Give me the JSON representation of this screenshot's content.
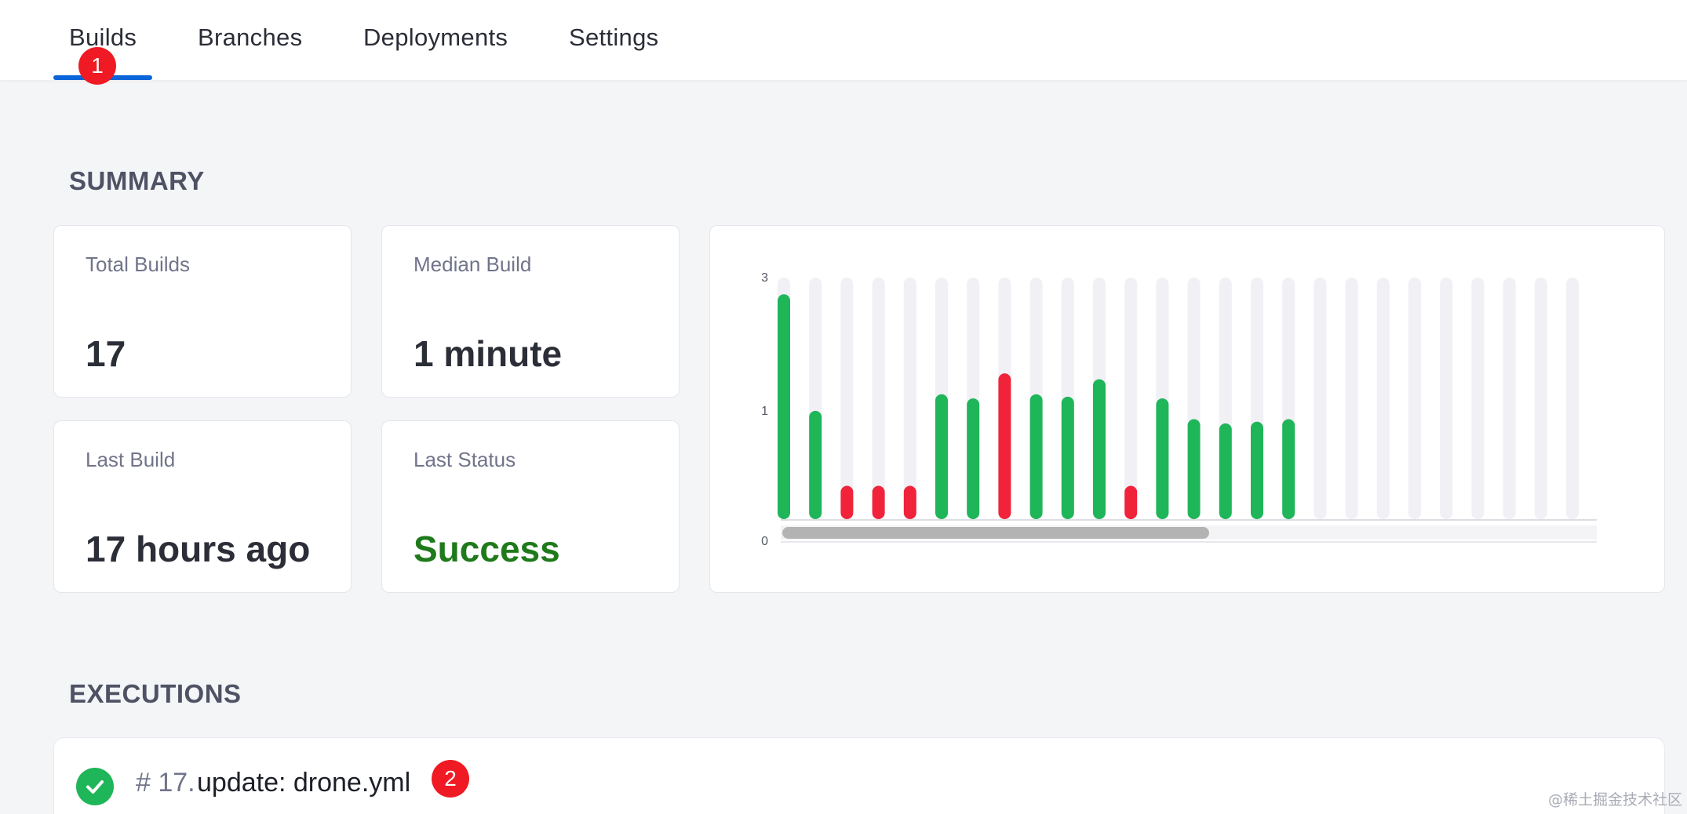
{
  "tabs": [
    {
      "label": "Builds",
      "active": true
    },
    {
      "label": "Branches",
      "active": false
    },
    {
      "label": "Deployments",
      "active": false
    },
    {
      "label": "Settings",
      "active": false
    }
  ],
  "markers": {
    "first": "1",
    "second": "2"
  },
  "summary": {
    "title": "SUMMARY",
    "total_builds_label": "Total Builds",
    "total_builds_value": "17",
    "median_build_label": "Median Build",
    "median_build_value": "1 minute",
    "last_build_label": "Last Build",
    "last_build_value": "17 hours ago",
    "last_status_label": "Last Status",
    "last_status_value": "Success"
  },
  "chart_data": {
    "type": "bar",
    "y_ticks": [
      "3",
      "1",
      "0"
    ],
    "slots": 27,
    "bars": [
      {
        "value": 2.7,
        "status": "success"
      },
      {
        "value": 1.3,
        "status": "success"
      },
      {
        "value": 0.4,
        "status": "failure"
      },
      {
        "value": 0.4,
        "status": "failure"
      },
      {
        "value": 0.4,
        "status": "failure"
      },
      {
        "value": 1.5,
        "status": "success"
      },
      {
        "value": 1.45,
        "status": "success"
      },
      {
        "value": 1.75,
        "status": "failure"
      },
      {
        "value": 1.5,
        "status": "success"
      },
      {
        "value": 1.47,
        "status": "success"
      },
      {
        "value": 1.68,
        "status": "success"
      },
      {
        "value": 0.4,
        "status": "failure"
      },
      {
        "value": 1.45,
        "status": "success"
      },
      {
        "value": 1.2,
        "status": "success"
      },
      {
        "value": 1.15,
        "status": "success"
      },
      {
        "value": 1.17,
        "status": "success"
      },
      {
        "value": 1.2,
        "status": "success"
      }
    ],
    "colors": {
      "success": "#1fb559",
      "failure": "#f0233b",
      "track": "#f0f0f5",
      "scrollbar": "#b3b3b3"
    }
  },
  "executions": {
    "title": "EXECUTIONS",
    "items": [
      {
        "number": "# 17.",
        "message": "update: drone.yml",
        "status": "success"
      }
    ]
  },
  "watermark": "@稀土掘金技术社区"
}
